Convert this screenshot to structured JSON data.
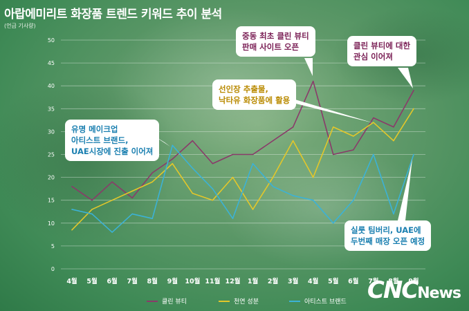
{
  "title": "아랍에미리트 화장품 트렌드 키워드 추이 분석",
  "unit": "(언급 기사량)",
  "logo": {
    "cnc": "CNC",
    "news": "News"
  },
  "callouts": [
    {
      "id": "clean-first",
      "text": "중동 최초 클린 뷰티\n판매 사이트 오픈",
      "color": "rose"
    },
    {
      "id": "clean-continue",
      "text": "클린 뷰티에 대한\n관심 이어져",
      "color": "rose"
    },
    {
      "id": "natural-oil",
      "text": "선인장 추출물,\n낙타유 화장품에 활용",
      "color": "gold"
    },
    {
      "id": "artist-brand",
      "text": "유명 메이크업\n아티스트 브랜드,\nUAE시장에 진출 이어져",
      "color": "teal"
    },
    {
      "id": "silk-store",
      "text": "실룻 팀버리, UAE에\n두번째 매장 오픈 예정",
      "color": "teal"
    }
  ],
  "chart_data": {
    "type": "line",
    "categories": [
      "4월",
      "5월",
      "6월",
      "7월",
      "8월",
      "9월",
      "10월",
      "11월",
      "12월",
      "1월",
      "2월",
      "3월",
      "4월",
      "5월",
      "6월",
      "7월",
      "8월",
      "9월"
    ],
    "ylim": [
      0,
      50
    ],
    "yticks": [
      0,
      5,
      10,
      15,
      20,
      25,
      30,
      35,
      40,
      45,
      50
    ],
    "grid": true,
    "legend_position": "bottom",
    "series": [
      {
        "name": "클린 뷰티",
        "color": "#8a3a6a",
        "values": [
          18,
          15,
          19,
          15.5,
          21,
          24,
          28,
          23,
          25,
          25,
          28,
          31,
          41,
          25,
          26,
          33,
          31,
          39
        ]
      },
      {
        "name": "천연 성분",
        "color": "#e3c72a",
        "values": [
          8.5,
          13,
          15,
          17,
          19,
          23,
          16.5,
          15,
          20,
          13,
          20,
          28,
          20,
          31,
          29,
          32,
          28,
          35
        ]
      },
      {
        "name": "아티스트 브랜드",
        "color": "#3cb2d6",
        "values": [
          13,
          12,
          8,
          12,
          11,
          27,
          22,
          17.5,
          11,
          23,
          18,
          16,
          15,
          10,
          15,
          25,
          12,
          25
        ]
      }
    ]
  }
}
